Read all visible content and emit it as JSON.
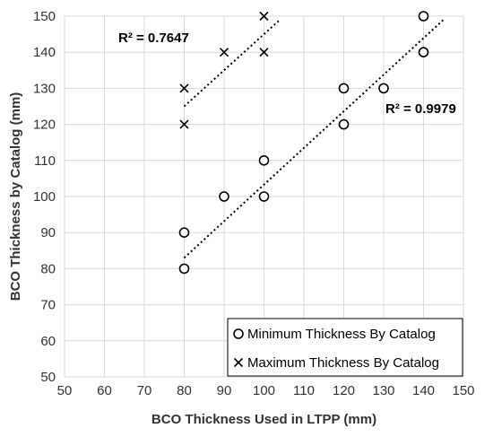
{
  "chart_data": {
    "type": "scatter",
    "xlabel": "BCO Thickness Used in LTPP (mm)",
    "ylabel": "BCO Thickness by Catalog (mm)",
    "xlim": [
      50,
      150
    ],
    "ylim": [
      50,
      150
    ],
    "xticks": [
      50,
      60,
      70,
      80,
      90,
      100,
      110,
      120,
      130,
      140,
      150
    ],
    "yticks": [
      50,
      60,
      70,
      80,
      90,
      100,
      110,
      120,
      130,
      140,
      150
    ],
    "grid": true,
    "legend_position": "bottom-right",
    "series": [
      {
        "name": "Minimum Thickness By Catalog",
        "marker": "circle",
        "color": "#000000",
        "points": [
          [
            80,
            80
          ],
          [
            80,
            90
          ],
          [
            90,
            100
          ],
          [
            100,
            100
          ],
          [
            100,
            110
          ],
          [
            120,
            120
          ],
          [
            120,
            130
          ],
          [
            130,
            130
          ],
          [
            140,
            140
          ],
          [
            140,
            150
          ]
        ],
        "trendline": {
          "x_range": [
            80,
            145
          ],
          "y_range": [
            83,
            149
          ]
        },
        "r2_label": "R² = 0.9979"
      },
      {
        "name": "Maximum Thickness By Catalog",
        "marker": "cross",
        "color": "#000000",
        "points": [
          [
            80,
            120
          ],
          [
            80,
            130
          ],
          [
            90,
            140
          ],
          [
            100,
            140
          ],
          [
            100,
            150
          ]
        ],
        "trendline": {
          "x_range": [
            80,
            104
          ],
          "y_range": [
            125,
            149
          ]
        },
        "r2_label": "R² = 0.7647"
      }
    ]
  }
}
